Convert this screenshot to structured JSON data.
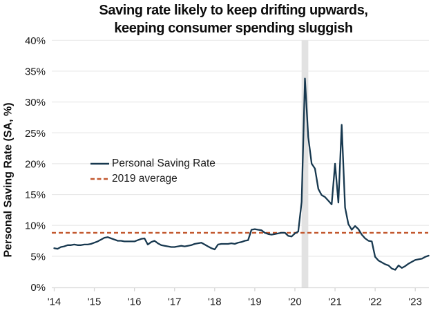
{
  "title": {
    "line1": "Saving rate likely to keep drifting upwards,",
    "line2": "keeping consumer spending sluggish"
  },
  "y_axis_title": "Personal Saving Rate (SA, %)",
  "legend": {
    "items": [
      {
        "label": "Personal Saving Rate",
        "style": "solid",
        "color_key": "saving_rate_line"
      },
      {
        "label": "2019 average",
        "style": "dashed",
        "color_key": "average_line"
      }
    ]
  },
  "colors": {
    "saving_rate_line": "#17384f",
    "average_line": "#c2572e",
    "recession_band": "#e2e2e2",
    "gridline": "#e9e9e9",
    "axis": "#d6d6d6",
    "text": "#1a1a1a"
  },
  "chart_data": {
    "type": "line",
    "title": "Saving rate likely to keep drifting upwards, keeping consumer spending sluggish",
    "ylabel": "Personal Saving Rate (SA, %)",
    "xlabel": "",
    "frequency": "monthly",
    "x_start": "2014-01",
    "x_end": "2023-05",
    "ylim": [
      0,
      40
    ],
    "grid": "horizontal",
    "legend_position": "middle-left",
    "y_ticks": [
      {
        "value": 0,
        "label": "0%"
      },
      {
        "value": 5,
        "label": "5%"
      },
      {
        "value": 10,
        "label": "10%"
      },
      {
        "value": 15,
        "label": "15%"
      },
      {
        "value": 20,
        "label": "20%"
      },
      {
        "value": 25,
        "label": "25%"
      },
      {
        "value": 30,
        "label": "30%"
      },
      {
        "value": 35,
        "label": "35%"
      },
      {
        "value": 40,
        "label": "40%"
      }
    ],
    "x_ticks": [
      "'14",
      "'15",
      "'16",
      "'17",
      "'18",
      "'19",
      "'20",
      "'21",
      "'22",
      "'23"
    ],
    "series": [
      {
        "name": "Personal Saving Rate",
        "values": [
          6.3,
          6.2,
          6.5,
          6.6,
          6.8,
          6.8,
          6.9,
          6.8,
          6.8,
          6.9,
          6.9,
          7.0,
          7.2,
          7.4,
          7.7,
          8.0,
          8.1,
          7.9,
          7.7,
          7.5,
          7.5,
          7.4,
          7.4,
          7.4,
          7.4,
          7.6,
          7.8,
          7.9,
          6.9,
          7.3,
          7.5,
          7.1,
          6.8,
          6.7,
          6.6,
          6.5,
          6.5,
          6.6,
          6.7,
          6.6,
          6.7,
          6.8,
          7.0,
          7.1,
          7.2,
          6.9,
          6.6,
          6.3,
          6.1,
          6.9,
          7.0,
          7.0,
          7.0,
          7.1,
          7.0,
          7.2,
          7.3,
          7.5,
          7.6,
          9.3,
          9.4,
          9.3,
          9.2,
          8.8,
          8.6,
          8.5,
          8.6,
          8.7,
          8.8,
          8.8,
          8.3,
          8.2,
          8.7,
          9.0,
          13.8,
          33.8,
          24.3,
          20.0,
          19.2,
          15.9,
          14.9,
          14.6,
          14.0,
          13.4,
          20.0,
          13.7,
          26.3,
          12.9,
          10.2,
          9.3,
          9.9,
          9.4,
          8.5,
          7.9,
          7.5,
          7.4,
          4.9,
          4.3,
          4.0,
          3.7,
          3.5,
          3.0,
          2.8,
          3.5,
          3.1,
          3.4,
          3.8,
          4.1,
          4.4,
          4.5,
          4.6,
          4.9,
          5.1
        ]
      }
    ],
    "reference_line": {
      "label": "2019 average",
      "value": 8.8,
      "style": "dashed"
    },
    "recession_band": {
      "from": "2020-03",
      "to": "2020-05"
    }
  }
}
